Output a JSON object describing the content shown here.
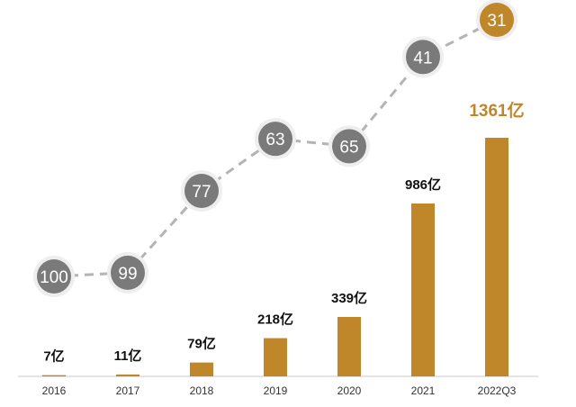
{
  "chart_data": {
    "type": "bar",
    "categories": [
      "2016",
      "2017",
      "2018",
      "2019",
      "2020",
      "2021",
      "2022Q3"
    ],
    "series": [
      {
        "type": "bar",
        "values": [
          7,
          11,
          79,
          218,
          339,
          986,
          1361
        ],
        "data_labels": [
          "7亿",
          "11亿",
          "79亿",
          "218亿",
          "339亿",
          "986亿",
          "1361亿"
        ]
      },
      {
        "type": "line",
        "values": [
          100,
          99,
          77,
          63,
          65,
          41,
          31
        ],
        "data_labels": [
          "100",
          "99",
          "77",
          "63",
          "65",
          "41",
          "31"
        ]
      }
    ],
    "title": "",
    "xlabel": "",
    "ylabel": "",
    "highlight_category": "2022Q3",
    "colors": {
      "bar": "#c0862a",
      "highlight": "#c0862a",
      "line": "#b4b4b4",
      "marker": "#7a7a7a",
      "marker_ring": "#eeeeee",
      "axis": "#c8c8c8"
    }
  }
}
